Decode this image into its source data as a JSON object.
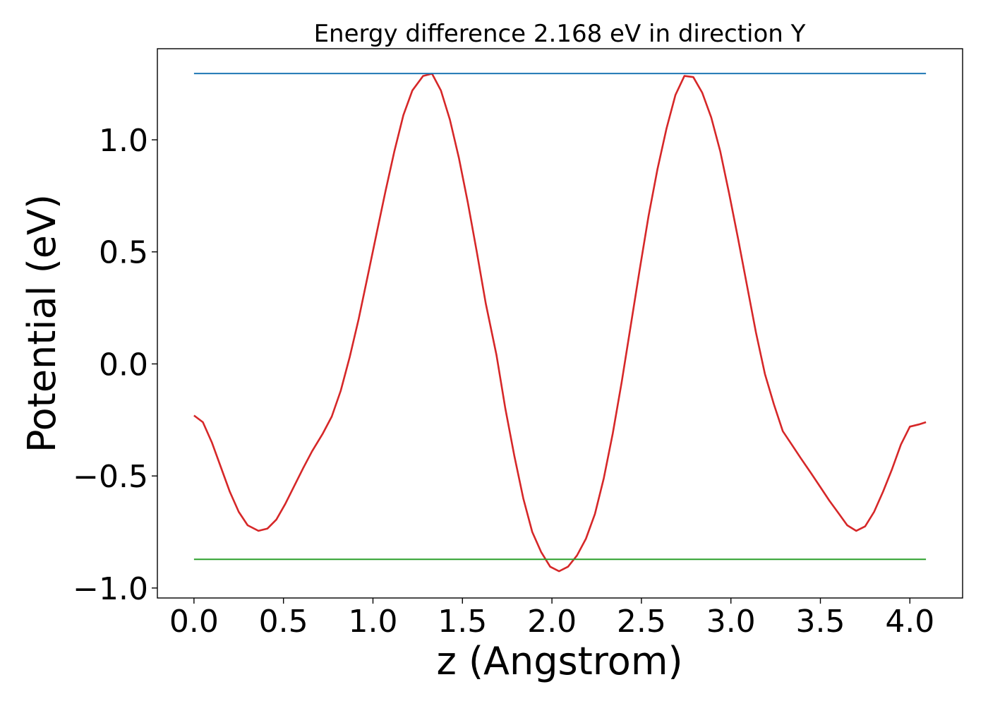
{
  "chart_data": {
    "type": "line",
    "title": "Energy difference 2.168 eV in direction Y",
    "xlabel": "z (Angstrom)",
    "ylabel": "Potential (eV)",
    "xlim": [
      -0.2045,
      4.2945
    ],
    "ylim": [
      -1.0445,
      1.4065
    ],
    "xticks": [
      0.0,
      0.5,
      1.0,
      1.5,
      2.0,
      2.5,
      3.0,
      3.5,
      4.0
    ],
    "xtick_labels": [
      "0.0",
      "0.5",
      "1.0",
      "1.5",
      "2.0",
      "2.5",
      "3.0",
      "3.5",
      "4.0"
    ],
    "yticks": [
      -1.0,
      -0.5,
      0.0,
      0.5,
      1.0
    ],
    "ytick_labels": [
      "−1.0",
      "−0.5",
      "0.0",
      "0.5",
      "1.0"
    ],
    "grid": false,
    "legend": false,
    "series": [
      {
        "color": "#d62728",
        "x": [
          0.0,
          0.05,
          0.1,
          0.15,
          0.2,
          0.25,
          0.3,
          0.36,
          0.41,
          0.46,
          0.51,
          0.56,
          0.61,
          0.66,
          0.72,
          0.77,
          0.82,
          0.87,
          0.92,
          0.97,
          1.02,
          1.07,
          1.12,
          1.17,
          1.22,
          1.28,
          1.33,
          1.38,
          1.43,
          1.48,
          1.53,
          1.58,
          1.63,
          1.69,
          1.74,
          1.79,
          1.84,
          1.89,
          1.94,
          1.99,
          2.04,
          2.09,
          2.14,
          2.19,
          2.24,
          2.29,
          2.34,
          2.39,
          2.44,
          2.49,
          2.54,
          2.59,
          2.64,
          2.69,
          2.74,
          2.79,
          2.84,
          2.89,
          2.94,
          2.99,
          3.04,
          3.09,
          3.14,
          3.19,
          3.24,
          3.29,
          3.34,
          3.39,
          3.45,
          3.5,
          3.55,
          3.6,
          3.65,
          3.7,
          3.75,
          3.8,
          3.85,
          3.9,
          3.95,
          4.0,
          4.05,
          4.09
        ],
        "y": [
          -0.23,
          -0.26,
          -0.35,
          -0.46,
          -0.57,
          -0.66,
          -0.72,
          -0.745,
          -0.735,
          -0.695,
          -0.625,
          -0.545,
          -0.465,
          -0.39,
          -0.31,
          -0.235,
          -0.12,
          0.03,
          0.2,
          0.39,
          0.58,
          0.77,
          0.95,
          1.11,
          1.22,
          1.285,
          1.295,
          1.22,
          1.09,
          0.92,
          0.72,
          0.5,
          0.27,
          0.04,
          -0.2,
          -0.41,
          -0.6,
          -0.75,
          -0.84,
          -0.905,
          -0.925,
          -0.905,
          -0.855,
          -0.78,
          -0.67,
          -0.51,
          -0.31,
          -0.08,
          0.17,
          0.42,
          0.66,
          0.87,
          1.05,
          1.2,
          1.285,
          1.28,
          1.21,
          1.1,
          0.95,
          0.76,
          0.56,
          0.35,
          0.14,
          -0.045,
          -0.18,
          -0.3,
          -0.36,
          -0.42,
          -0.49,
          -0.55,
          -0.61,
          -0.665,
          -0.72,
          -0.745,
          -0.725,
          -0.66,
          -0.57,
          -0.47,
          -0.36,
          -0.28,
          -0.27,
          -0.26
        ]
      },
      {
        "color": "#1f77b4",
        "x": [
          0.0,
          4.09
        ],
        "y": [
          1.296,
          1.296
        ]
      },
      {
        "color": "#2ca02c",
        "x": [
          0.0,
          4.09
        ],
        "y": [
          -0.872,
          -0.872
        ]
      }
    ]
  }
}
